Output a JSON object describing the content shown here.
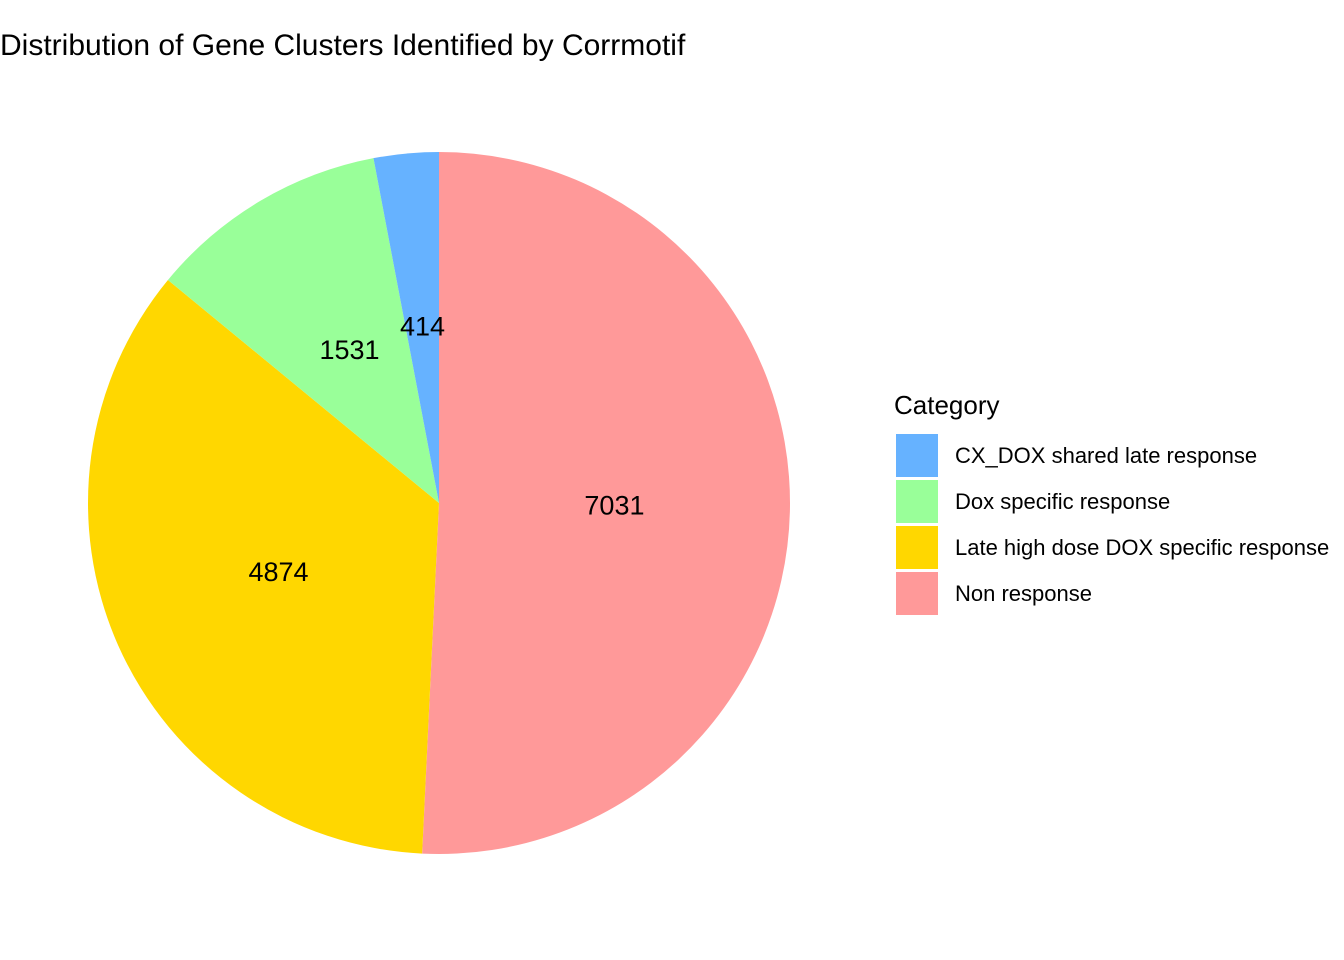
{
  "chart_data": {
    "type": "pie",
    "title": "Distribution of Gene Clusters Identified by Corrmotif",
    "legend_title": "Category",
    "categories": [
      "CX_DOX shared late response",
      "Dox specific response",
      "Late high dose DOX specific response",
      "Non response"
    ],
    "values": [
      414,
      1531,
      4874,
      7031
    ],
    "colors": [
      "#66b2ff",
      "#99ff99",
      "#ffd700",
      "#ff9999"
    ],
    "legend_position": "right"
  }
}
